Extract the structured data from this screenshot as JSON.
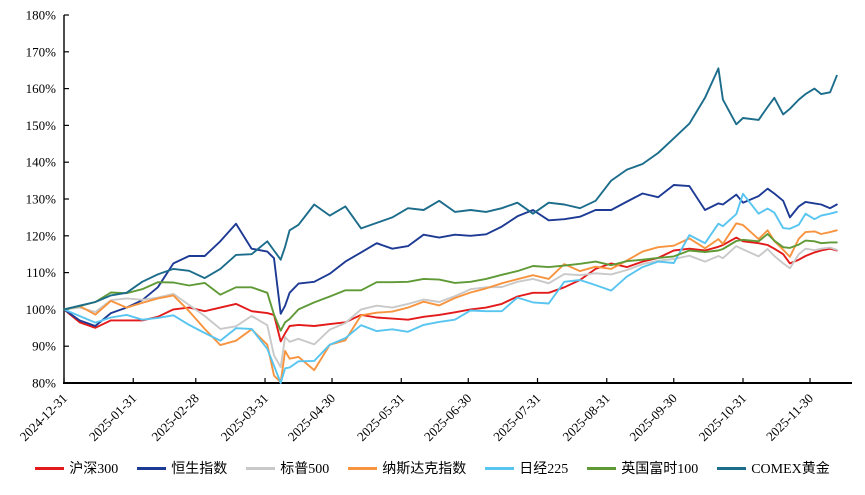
{
  "chart_data": {
    "type": "line",
    "title": "",
    "xlabel": "",
    "ylabel": "",
    "grid": false,
    "legend_position": "bottom",
    "base_date": "2024-12-31",
    "x_unit": "days since 2024-12-31",
    "x_axis_end_day": 352,
    "x_tick_days": [
      0,
      31,
      59,
      90,
      120,
      151,
      181,
      212,
      243,
      273,
      304,
      334
    ],
    "x_tick_labels": [
      "2024-12-31",
      "2025-01-31",
      "2025-02-28",
      "2025-03-31",
      "2025-04-30",
      "2025-05-31",
      "2025-06-30",
      "2025-07-31",
      "2025-08-31",
      "2025-09-30",
      "2025-10-31",
      "2025-11-30"
    ],
    "y_axis": {
      "min": 80,
      "max": 180,
      "step": 10
    },
    "y_tick_values": [
      80,
      90,
      100,
      110,
      120,
      130,
      140,
      150,
      160,
      170,
      180
    ],
    "y_tick_labels": [
      "80%",
      "90%",
      "100%",
      "110%",
      "120%",
      "130%",
      "140%",
      "150%",
      "160%",
      "170%",
      "180%"
    ],
    "x_days": [
      0,
      7,
      14,
      21,
      28,
      35,
      42,
      49,
      56,
      63,
      70,
      77,
      84,
      91,
      94,
      97,
      99,
      101,
      105,
      112,
      119,
      126,
      133,
      140,
      147,
      154,
      161,
      168,
      175,
      182,
      189,
      196,
      203,
      210,
      217,
      224,
      231,
      238,
      245,
      252,
      259,
      266,
      273,
      280,
      287,
      293,
      295,
      301,
      304,
      311,
      315,
      318,
      322,
      325,
      329,
      332,
      336,
      339,
      343,
      346
    ],
    "series": [
      {
        "id": "csi300",
        "name": "沪深300",
        "color": "#e31a1a",
        "values": [
          100,
          96.5,
          95,
          97,
          97,
          97,
          98,
          100,
          100.5,
          99.5,
          100.5,
          101.5,
          99.5,
          99,
          98.5,
          91.3,
          93.5,
          95.5,
          95.8,
          95.5,
          96,
          96.5,
          98.5,
          97.8,
          97.5,
          97.2,
          98,
          98.5,
          99.2,
          100,
          100.5,
          101.5,
          103.5,
          104.5,
          104.5,
          106,
          108,
          111,
          112.5,
          111.5,
          113,
          114,
          116,
          116.5,
          116,
          117,
          117.5,
          119.5,
          118.5,
          118,
          117.5,
          116.5,
          115,
          112.5,
          113.5,
          114.5,
          115.5,
          116,
          116.5,
          116
        ]
      },
      {
        "id": "hang-seng",
        "name": "恒生指数",
        "color": "#1d3a94",
        "values": [
          100,
          97,
          95.5,
          99,
          100.5,
          102.5,
          106,
          112.5,
          114.5,
          114.5,
          118.5,
          123.3,
          116.5,
          115.7,
          113.9,
          98.8,
          101,
          104.5,
          107,
          107.5,
          109.7,
          113,
          115.5,
          118,
          116.5,
          117.2,
          120.3,
          119.5,
          120.3,
          120,
          120.4,
          122.5,
          125.3,
          127,
          124.2,
          124.5,
          125.2,
          127,
          127,
          129.3,
          131.5,
          130.5,
          133.8,
          133.5,
          127,
          128.8,
          128.5,
          131.2,
          129,
          130.8,
          132.8,
          131.5,
          129.5,
          125,
          128,
          129.2,
          128.8,
          128.5,
          127.5,
          128.5
        ]
      },
      {
        "id": "sp500",
        "name": "标普500",
        "color": "#c9c9c9",
        "values": [
          100,
          100.5,
          99.3,
          102.5,
          103,
          102.6,
          103.2,
          104.2,
          101.2,
          98.2,
          94.7,
          95.4,
          98.2,
          95.7,
          87.5,
          84.3,
          92.5,
          91.2,
          92,
          90.5,
          94.5,
          96.3,
          100,
          101,
          100.5,
          101.5,
          102.7,
          102,
          103.6,
          105.5,
          106,
          106.1,
          107.5,
          108.3,
          107.1,
          109.6,
          109.3,
          109.8,
          109.5,
          110.7,
          112.3,
          113.2,
          113.7,
          114.6,
          113,
          114.5,
          113.9,
          117.2,
          116.3,
          114.4,
          116.4,
          114.5,
          112.5,
          111.2,
          115,
          116.5,
          116.1,
          116.5,
          116.8,
          116.2
        ]
      },
      {
        "id": "nasdaq",
        "name": "纳斯达克指数",
        "color": "#f79440",
        "values": [
          100,
          100.9,
          98.6,
          102.3,
          100.5,
          101.8,
          103,
          103.8,
          99.5,
          94.7,
          90.3,
          91.5,
          94.6,
          90.4,
          82,
          80.2,
          88.7,
          86.6,
          87.1,
          83.5,
          90.4,
          91.6,
          98.4,
          99.1,
          99.4,
          100.5,
          102.1,
          101.1,
          103.1,
          104.6,
          105.7,
          107.1,
          108.2,
          109.3,
          108.3,
          112.3,
          110.4,
          111.6,
          111,
          113.3,
          115.7,
          116.9,
          117.3,
          119.3,
          116.6,
          119.1,
          117.8,
          123.4,
          122.9,
          119.1,
          121.5,
          118.6,
          116.2,
          114.3,
          119.2,
          121,
          121.2,
          120.5,
          121,
          121.5
        ]
      },
      {
        "id": "nikkei225",
        "name": "日经225",
        "color": "#58c5f0",
        "values": [
          100,
          98.2,
          96.4,
          97.8,
          98.5,
          97.2,
          97.7,
          98.4,
          95.8,
          93.6,
          91.5,
          94.9,
          94.7,
          89.3,
          84.7,
          80,
          84,
          84.2,
          85.9,
          86,
          90.4,
          92.2,
          95.7,
          94.1,
          94.6,
          93.9,
          95.8,
          96.6,
          97.2,
          99.7,
          99.5,
          99.5,
          103.2,
          101.9,
          101.6,
          107.5,
          108,
          106.6,
          105.1,
          108.9,
          111.5,
          113,
          112.6,
          120.2,
          118,
          123.3,
          122.6,
          125.9,
          131.4,
          126,
          127.4,
          126.3,
          122.1,
          121.9,
          123,
          126,
          124.5,
          125.5,
          126,
          126.5
        ]
      },
      {
        "id": "ftse100",
        "name": "英国富时100",
        "color": "#5f9a37",
        "values": [
          100,
          100.9,
          102,
          104.6,
          104.4,
          105.5,
          107.4,
          107.3,
          106.5,
          107.2,
          104,
          106,
          106,
          104.5,
          98.6,
          94.2,
          96.5,
          97.4,
          100,
          101.9,
          103.5,
          105.2,
          105.2,
          107.4,
          107.4,
          107.5,
          108.3,
          108.1,
          107.2,
          107.5,
          108.3,
          109.4,
          110.4,
          111.8,
          111.5,
          111.9,
          112.4,
          113,
          112,
          113.1,
          113.5,
          114,
          114.4,
          116,
          115.6,
          116,
          116.4,
          118.6,
          118.9,
          118.5,
          120.5,
          118.7,
          116.9,
          116.7,
          117.6,
          118.7,
          118.5,
          118,
          118.2,
          118.2
        ]
      },
      {
        "id": "comex-gold",
        "name": "COMEX黄金",
        "color": "#1c6d8c",
        "values": [
          100,
          101,
          102,
          103.8,
          104.5,
          107.5,
          109.5,
          111,
          110.5,
          108.5,
          111,
          114.8,
          115,
          118.5,
          116,
          113.5,
          117,
          121.5,
          123,
          128.5,
          125.5,
          128,
          122,
          123.5,
          125,
          127.5,
          127,
          129.5,
          126.5,
          127,
          126.5,
          127.5,
          129,
          126,
          129,
          128.5,
          127.5,
          129.5,
          135,
          138,
          139.5,
          142.5,
          146.5,
          150.5,
          157.5,
          165.5,
          157,
          150.3,
          152,
          151.5,
          155,
          157.5,
          153,
          154.5,
          157,
          158.5,
          160,
          158.5,
          159,
          163.5
        ]
      }
    ]
  }
}
